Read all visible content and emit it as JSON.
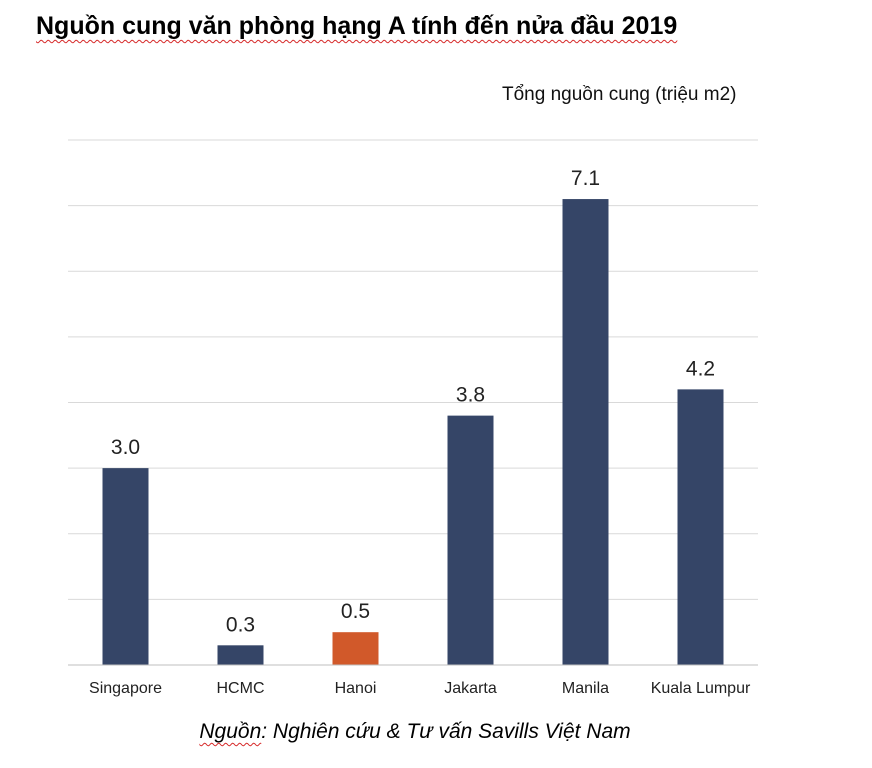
{
  "title": "Nguồn cung văn phòng hạng A tính đến nửa đầu 2019",
  "unit_label": "Tổng nguồn cung (triệu m2)",
  "source_prefix": "Nguồn",
  "source_rest": ": Nghiên cứu & Tư vấn Savills Việt Nam",
  "colors": {
    "default_bar": "#354567",
    "highlight_bar": "#d1592a",
    "grid": "#d9d9d9",
    "axis": "#bfbfbf"
  },
  "chart_data": {
    "type": "bar",
    "title": "Nguồn cung văn phòng hạng A tính đến nửa đầu 2019",
    "ylabel": "Tổng nguồn cung (triệu m2)",
    "xlabel": "",
    "categories": [
      "Singapore",
      "HCMC",
      "Hanoi",
      "Jakarta",
      "Manila",
      "Kuala Lumpur"
    ],
    "values": [
      3.0,
      0.3,
      0.5,
      3.8,
      7.1,
      4.2
    ],
    "value_labels": [
      "3.0",
      "0.3",
      "0.5",
      "3.8",
      "7.1",
      "4.2"
    ],
    "highlight_category": "Hanoi",
    "ylim": [
      0,
      8
    ],
    "gridlines": [
      1,
      2,
      3,
      4,
      5,
      6,
      7,
      8
    ],
    "grid": true,
    "legend": "none"
  }
}
